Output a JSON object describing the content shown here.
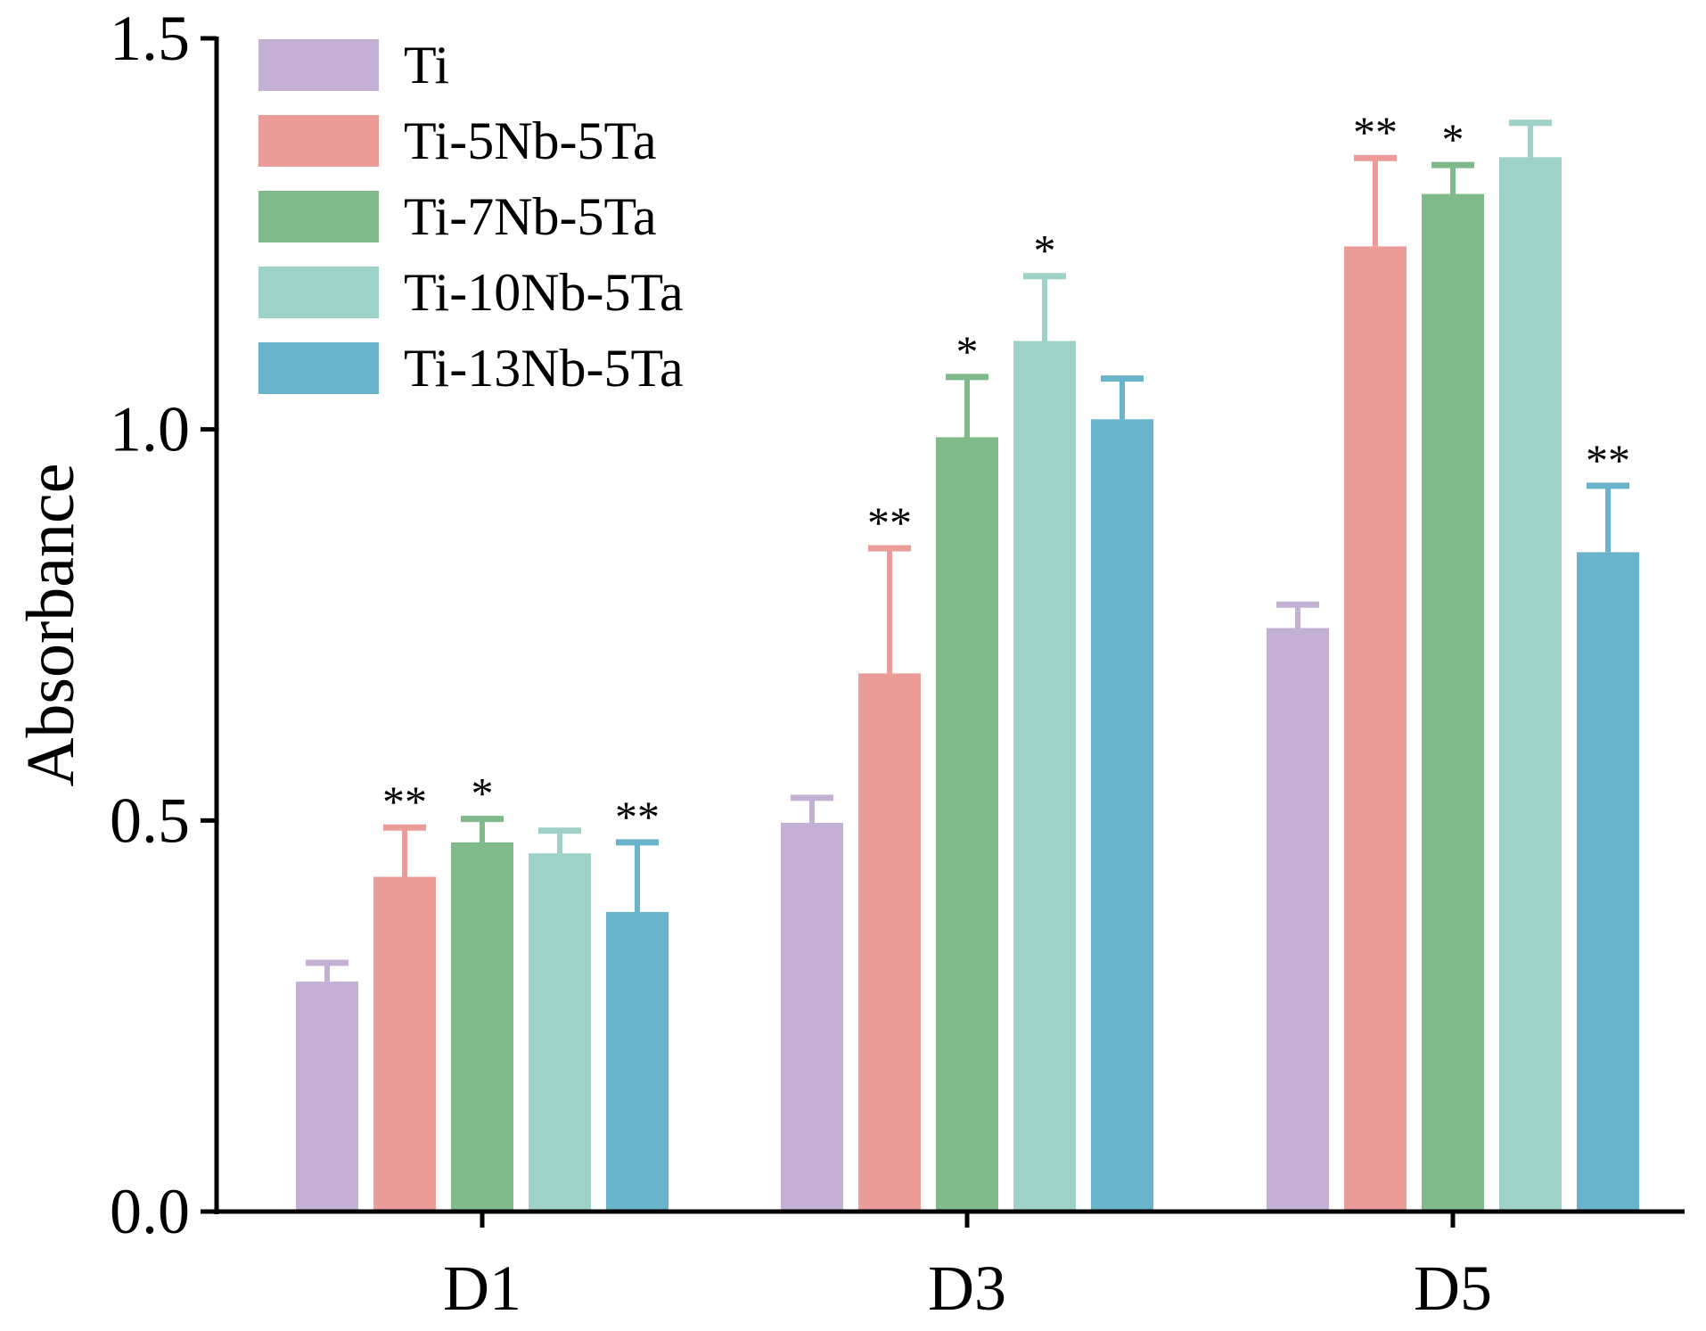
{
  "chart_data": {
    "type": "bar",
    "title": "",
    "xlabel": "",
    "ylabel": "Absorbance",
    "ylim": [
      0,
      1.5
    ],
    "y_ticks": [
      0.0,
      0.5,
      1.0,
      1.5
    ],
    "y_tick_labels": [
      "0.0",
      "0.5",
      "1.0",
      "1.5"
    ],
    "categories": [
      "D1",
      "D3",
      "D5"
    ],
    "legend_position": "top-left",
    "series": [
      {
        "name": "Ti",
        "color": "#c5b0d5",
        "values": [
          0.294,
          0.497,
          0.746
        ],
        "errors": [
          0.024,
          0.032,
          0.03
        ],
        "significance": [
          "",
          "",
          ""
        ]
      },
      {
        "name": "Ti-5Nb-5Ta",
        "color": "#ec9c98",
        "values": [
          0.428,
          0.688,
          1.234
        ],
        "errors": [
          0.063,
          0.16,
          0.113
        ],
        "significance": [
          "**",
          "**",
          "**"
        ]
      },
      {
        "name": "Ti-7Nb-5Ta",
        "color": "#80b98a",
        "values": [
          0.472,
          0.99,
          1.301
        ],
        "errors": [
          0.03,
          0.077,
          0.037
        ],
        "significance": [
          "*",
          "*",
          "*"
        ]
      },
      {
        "name": "Ti-10Nb-5Ta",
        "color": "#9ed1c7",
        "values": [
          0.458,
          1.113,
          1.348
        ],
        "errors": [
          0.029,
          0.083,
          0.044
        ],
        "significance": [
          "",
          "*",
          ""
        ]
      },
      {
        "name": "Ti-13Nb-5Ta",
        "color": "#69b4ca",
        "values": [
          0.383,
          1.013,
          0.843
        ],
        "errors": [
          0.089,
          0.052,
          0.085
        ],
        "significance": [
          "**",
          "",
          "**"
        ]
      }
    ]
  }
}
